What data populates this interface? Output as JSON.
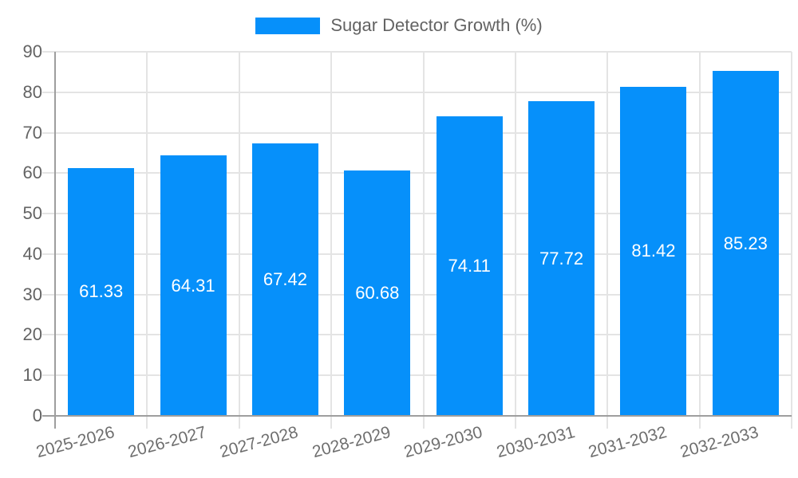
{
  "chart_data": {
    "type": "bar",
    "title": "Sugar Detector Growth (%)",
    "legend": {
      "position": "top",
      "entries": [
        "Sugar Detector Growth (%)"
      ]
    },
    "categories": [
      "2025-2026",
      "2026-2027",
      "2027-2028",
      "2028-2029",
      "2029-2030",
      "2030-2031",
      "2031-2032",
      "2032-2033"
    ],
    "values": [
      61.33,
      64.31,
      67.42,
      60.68,
      74.11,
      77.72,
      81.42,
      85.23
    ],
    "value_labels": [
      "61.33",
      "64.31",
      "67.42",
      "60.68",
      "74.11",
      "77.72",
      "81.42",
      "85.23"
    ],
    "xlabel": "",
    "ylabel": "",
    "ylim": [
      0,
      90
    ],
    "yticks": [
      0,
      10,
      20,
      30,
      40,
      50,
      60,
      70,
      80,
      90
    ],
    "grid": true,
    "x_label_rotation_deg": -15,
    "colors": {
      "bar": "#0690fa",
      "gridline": "#e4e4e4",
      "axis_line": "#9e9e9e",
      "axis_text": "#636363",
      "x_axis_text": "#6e6e6e",
      "value_text": "#ffffff",
      "background": "#ffffff"
    }
  }
}
